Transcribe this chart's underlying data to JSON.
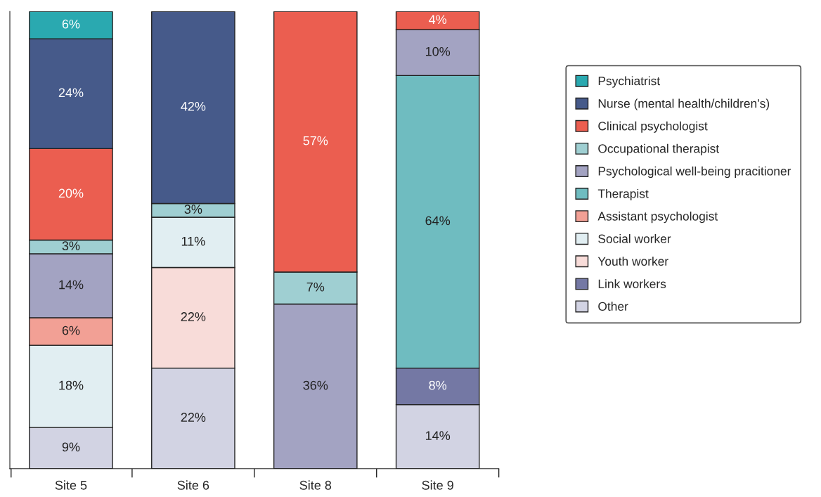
{
  "chart_data": {
    "type": "bar",
    "stacked": true,
    "categories": [
      "Site 5",
      "Site 6",
      "Site 8",
      "Site 9"
    ],
    "ylim": [
      0,
      100
    ],
    "tick_labels": "x",
    "legend": "right",
    "series": [
      {
        "name": "Other",
        "color": "#d2d3e3",
        "values": [
          9,
          22,
          null,
          14
        ],
        "value_labels": [
          "9%",
          "22%",
          null,
          "14%"
        ]
      },
      {
        "name": "Link workers",
        "color": "#7478a4",
        "values": [
          null,
          null,
          null,
          8
        ],
        "value_labels": [
          null,
          null,
          null,
          "8%"
        ]
      },
      {
        "name": "Youth worker",
        "color": "#f8dcd9",
        "values": [
          null,
          22,
          null,
          null
        ],
        "value_labels": [
          null,
          "22%",
          null,
          null
        ]
      },
      {
        "name": "Social worker",
        "color": "#e1eef2",
        "values": [
          18,
          11,
          null,
          null
        ],
        "value_labels": [
          "18%",
          "11%",
          null,
          null
        ]
      },
      {
        "name": "Assistant psychologist",
        "color": "#f2a095",
        "values": [
          6,
          null,
          null,
          null
        ],
        "value_labels": [
          "6%",
          null,
          null,
          null
        ]
      },
      {
        "name": "Therapist",
        "color": "#6fbcc0",
        "values": [
          null,
          null,
          null,
          64
        ],
        "value_labels": [
          null,
          null,
          null,
          "64%"
        ]
      },
      {
        "name": "Psychological well-being pracitioner",
        "color": "#a3a3c2",
        "values": [
          14,
          null,
          36,
          10
        ],
        "value_labels": [
          "14%",
          null,
          "36%",
          "10%"
        ]
      },
      {
        "name": "Occupational therapist",
        "color": "#9fcfd2",
        "values": [
          3,
          3,
          7,
          null
        ],
        "value_labels": [
          "3%",
          "3%",
          "7%",
          null
        ]
      },
      {
        "name": "Clinical psychologist",
        "color": "#eb5e50",
        "values": [
          20,
          null,
          57,
          4
        ],
        "value_labels": [
          "20%",
          null,
          "57%",
          "4%"
        ]
      },
      {
        "name": "Nurse (mental health/children’s)",
        "color": "#465a8a",
        "values": [
          24,
          42,
          null,
          null
        ],
        "value_labels": [
          "24%",
          "42%",
          null,
          null
        ]
      },
      {
        "name": "Psychiatrist",
        "color": "#2aa9b0",
        "values": [
          6,
          null,
          null,
          null
        ],
        "value_labels": [
          "6%",
          null,
          null,
          null
        ]
      }
    ]
  }
}
